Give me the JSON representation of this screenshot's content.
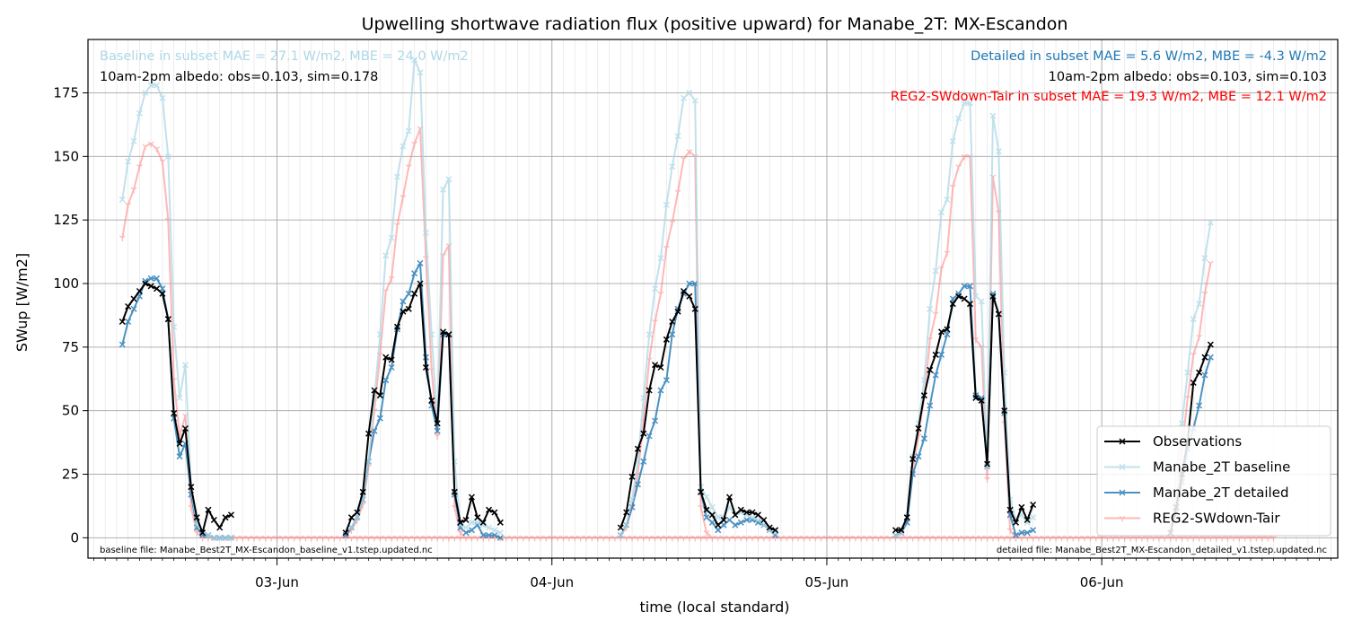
{
  "chart_data": {
    "type": "line",
    "title": "Upwelling shortwave radiation flux (positive upward) for Manabe_2T: MX-Escandon",
    "xlabel": "time (local standard)",
    "ylabel": "SWup [W/m2]",
    "ylim": [
      -8,
      196
    ],
    "yticks": [
      0,
      25,
      50,
      75,
      100,
      125,
      150,
      175
    ],
    "xlim_hours": [
      -16.5,
      92.6
    ],
    "x_ticks": [
      {
        "hour": 0,
        "label": "03-Jun"
      },
      {
        "hour": 24,
        "label": "04-Jun"
      },
      {
        "hour": 48,
        "label": "05-Jun"
      },
      {
        "hour": 72,
        "label": "06-Jun"
      }
    ],
    "x_start_label": "02-Jun 00:00",
    "step_hours": 0.5,
    "grid": true,
    "legend_position": "lower right",
    "series": [
      {
        "name": "Observations",
        "color": "#000000",
        "opacity": 1,
        "marker": "x",
        "width": 2,
        "segments": [
          {
            "start_hour": -13.5,
            "values": [
              85,
              91,
              94,
              97,
              100,
              99,
              98,
              96,
              86,
              49,
              37,
              43,
              20,
              8,
              2,
              11,
              7,
              4,
              8,
              9
            ]
          },
          {
            "start_hour": 6.0,
            "values": [
              2,
              8,
              10,
              18,
              41,
              58,
              56,
              71,
              70,
              83,
              89,
              90,
              96,
              100,
              67,
              54,
              45,
              81,
              80,
              18,
              6,
              7,
              16,
              8,
              6,
              11,
              10,
              6
            ]
          },
          {
            "start_hour": 30.0,
            "values": [
              4,
              10,
              24,
              35,
              41,
              58,
              68,
              67,
              78,
              85,
              89,
              97,
              95,
              90,
              18,
              11,
              9,
              5,
              7,
              16,
              9,
              11,
              10,
              10,
              9,
              7,
              4,
              3
            ]
          },
          {
            "start_hour": 54.0,
            "values": [
              3,
              3,
              8,
              31,
              43,
              56,
              66,
              72,
              81,
              82,
              92,
              95,
              94,
              92,
              55,
              54,
              29,
              95,
              88,
              50,
              11,
              6,
              12,
              7,
              13
            ]
          },
          {
            "start_hour": 78.0,
            "values": [
              2,
              12,
              25,
              38,
              61,
              65,
              71,
              76
            ]
          }
        ]
      },
      {
        "name": "Manabe_2T baseline",
        "color": "#add8e6",
        "opacity": 0.75,
        "marker": "x",
        "width": 2,
        "segments": [
          {
            "start_hour": -13.5,
            "values": [
              133,
              148,
              156,
              167,
              175,
              178,
              178,
              173,
              150,
              83,
              55,
              68,
              20,
              5,
              2,
              1,
              0,
              0,
              0,
              0
            ]
          },
          {
            "start_hour": 6.0,
            "values": [
              2,
              4,
              8,
              15,
              30,
              55,
              80,
              111,
              118,
              142,
              154,
              160,
              188,
              183,
              120,
              80,
              45,
              137,
              141,
              30,
              5,
              4,
              6,
              6,
              5,
              4,
              3,
              2
            ]
          },
          {
            "start_hour": 30.0,
            "values": [
              1,
              5,
              15,
              30,
              55,
              80,
              98,
              110,
              131,
              146,
              158,
              173,
              175,
              172,
              20,
              16,
              12,
              8,
              8,
              12,
              9,
              10,
              9,
              8,
              7,
              5,
              3,
              2
            ]
          },
          {
            "start_hour": 54.0,
            "values": [
              1,
              2,
              8,
              32,
              45,
              62,
              90,
              105,
              128,
              133,
              156,
              165,
              171,
              171,
              95,
              93,
              28,
              166,
              152,
              65,
              15,
              7,
              9,
              6,
              8
            ]
          },
          {
            "start_hour": 78.0,
            "values": [
              2,
              25,
              45,
              65,
              86,
              92,
              110,
              124
            ]
          }
        ]
      },
      {
        "name": "Manabe_2T detailed",
        "color": "#1f77b4",
        "opacity": 0.8,
        "marker": "x",
        "width": 2,
        "segments": [
          {
            "start_hour": -13.5,
            "values": [
              76,
              85,
              90,
              95,
              101,
              102,
              102,
              98,
              86,
              47,
              32,
              37,
              17,
              4,
              1,
              1,
              0,
              0,
              0,
              0
            ]
          },
          {
            "start_hour": 6.0,
            "values": [
              1,
              4,
              8,
              15,
              30,
              42,
              47,
              62,
              67,
              82,
              93,
              96,
              104,
              108,
              71,
              52,
              42,
              80,
              80,
              17,
              4,
              2,
              3,
              5,
              1,
              1,
              1,
              0
            ]
          },
          {
            "start_hour": 30.0,
            "values": [
              1,
              5,
              12,
              21,
              30,
              40,
              46,
              58,
              62,
              80,
              90,
              96,
              100,
              100,
              18,
              8,
              6,
              3,
              5,
              7,
              5,
              6,
              7,
              7,
              6,
              5,
              3,
              1
            ]
          },
          {
            "start_hour": 54.0,
            "values": [
              1,
              2,
              6,
              25,
              32,
              39,
              52,
              64,
              72,
              80,
              94,
              96,
              99,
              99,
              56,
              55,
              28,
              96,
              88,
              49,
              9,
              1,
              2,
              2,
              3
            ]
          },
          {
            "start_hour": 78.0,
            "values": [
              2,
              10,
              22,
              35,
              43,
              52,
              64,
              71
            ]
          }
        ]
      },
      {
        "name": "REG2-SWdown-Tair",
        "color": "#ff7f7f",
        "opacity": 0.55,
        "marker": "1",
        "width": 2,
        "segments": [
          {
            "start_hour": -13.5,
            "values": [
              118,
              131,
              137,
              146,
              154,
              155,
              153,
              148,
              125,
              62,
              40,
              48,
              12,
              2,
              0,
              0,
              0,
              0,
              0,
              0,
              0,
              0,
              0,
              0,
              0,
              0,
              0,
              0,
              0,
              0,
              0,
              0,
              0,
              0,
              0,
              0,
              0,
              0,
              0,
              0,
              0,
              0,
              0,
              0,
              0,
              0,
              0,
              0,
              0,
              0,
              0,
              0,
              0,
              0,
              0,
              0,
              0,
              0,
              0,
              0,
              0,
              0,
              0,
              0,
              0,
              0,
              0,
              0,
              0,
              0,
              0,
              0,
              0,
              0,
              0,
              0,
              0,
              0,
              0,
              0,
              0,
              0,
              0,
              0,
              0,
              0,
              0,
              0,
              0,
              0,
              0,
              0,
              0,
              0,
              0,
              0,
              0,
              0,
              0,
              0,
              0,
              0,
              0,
              0,
              0,
              0,
              0,
              0,
              0,
              0,
              0,
              0,
              0,
              0,
              0,
              0,
              0,
              0,
              0,
              0,
              0,
              0,
              0,
              0,
              0,
              0,
              0,
              0,
              0,
              0,
              0,
              0,
              0,
              0,
              0,
              0,
              0,
              0,
              0,
              0,
              0,
              0,
              0,
              0,
              0,
              0,
              0,
              0,
              0,
              0,
              0,
              0,
              0,
              0,
              0,
              0,
              0,
              0,
              0,
              0,
              0,
              0,
              0,
              0,
              0,
              0,
              0,
              0,
              0,
              0,
              0,
              0,
              0,
              0,
              0,
              0,
              0,
              0,
              0,
              0,
              0,
              0,
              0,
              0,
              0,
              0,
              0,
              0,
              0,
              0,
              0,
              0,
              0,
              0,
              0,
              0,
              0,
              0,
              0,
              0,
              0,
              0
            ]
          },
          {
            "start_hour": 6.0,
            "values": [
              1,
              3,
              7,
              13,
              28,
              50,
              72,
              97,
              102,
              123,
              134,
              146,
              155,
              161,
              110,
              66,
              40,
              111,
              115,
              12,
              2,
              0,
              0,
              0,
              0
            ]
          },
          {
            "start_hour": 30.0,
            "values": [
              1,
              4,
              12,
              25,
              46,
              70,
              85,
              96,
              114,
              124,
              136,
              149,
              152,
              150,
              12,
              2,
              0
            ]
          },
          {
            "start_hour": 54.0,
            "values": [
              1,
              2,
              7,
              27,
              40,
              55,
              78,
              88,
              106,
              112,
              138,
              146,
              150,
              150,
              78,
              75,
              23,
              142,
              128,
              45,
              3,
              0
            ]
          },
          {
            "start_hour": 78.0,
            "values": [
              2,
              15,
              35,
              55,
              72,
              79,
              96,
              108
            ]
          }
        ]
      }
    ],
    "annotations": {
      "baseline_stats": "Baseline in subset MAE = 27.1 W/m2, MBE = 24.0 W/m2",
      "baseline_albedo": "10am-2pm albedo: obs=0.103, sim=0.178",
      "detailed_stats": "Detailed in subset MAE = 5.6 W/m2, MBE = -4.3 W/m2",
      "detailed_albedo": "10am-2pm albedo: obs=0.103, sim=0.103",
      "reg2_stats": "REG2-SWdown-Tair in subset MAE = 19.3 W/m2, MBE = 12.1 W/m2",
      "baseline_file": "baseline file: Manabe_Best2T_MX-Escandon_baseline_v1.tstep.updated.nc",
      "detailed_file": "detailed file: Manabe_Best2T_MX-Escandon_detailed_v1.tstep.updated.nc"
    },
    "annotation_colors": {
      "baseline": "#add8e6",
      "detailed": "#1f77b4",
      "reg2": "#ff0000",
      "albedo": "#000000"
    }
  }
}
